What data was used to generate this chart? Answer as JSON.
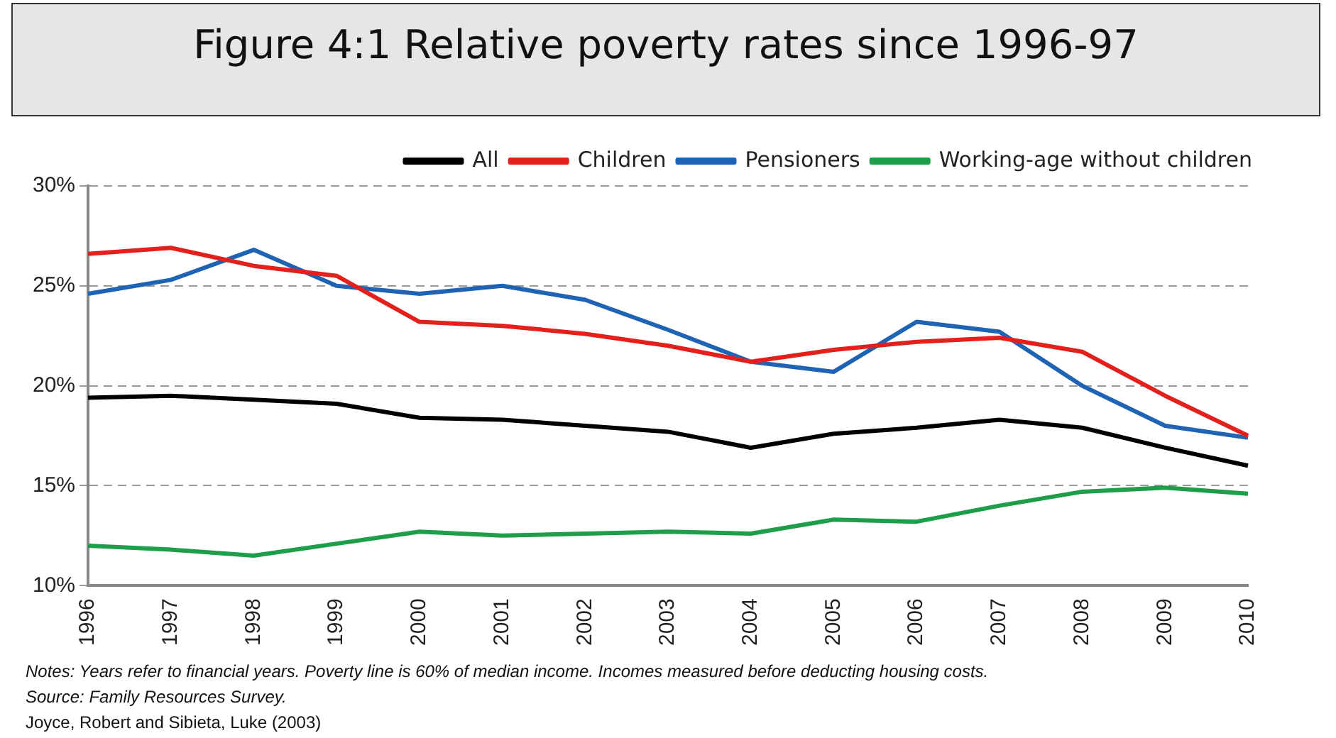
{
  "chart_data": {
    "type": "line",
    "title": "Figure 4:1 Relative poverty rates since 1996-97",
    "categories": [
      "1996",
      "1997",
      "1998",
      "1999",
      "2000",
      "2001",
      "2002",
      "2003",
      "2004",
      "2005",
      "2006",
      "2007",
      "2008",
      "2009",
      "2010"
    ],
    "series": [
      {
        "name": "All",
        "color": "#000000",
        "values": [
          19.4,
          19.5,
          19.3,
          19.1,
          18.4,
          18.3,
          18.0,
          17.7,
          16.9,
          17.6,
          17.9,
          18.3,
          17.9,
          16.9,
          16.0
        ]
      },
      {
        "name": "Children",
        "color": "#e3201b",
        "values": [
          26.6,
          26.9,
          26.0,
          25.5,
          23.2,
          23.0,
          22.6,
          22.0,
          21.2,
          21.8,
          22.2,
          22.4,
          21.7,
          19.5,
          17.5
        ]
      },
      {
        "name": "Pensioners",
        "color": "#1f64b4",
        "values": [
          24.6,
          25.3,
          26.8,
          25.0,
          24.6,
          25.0,
          24.3,
          22.8,
          21.2,
          20.7,
          23.2,
          22.7,
          20.0,
          18.0,
          17.4
        ]
      },
      {
        "name": "Working-age without children",
        "color": "#1e9e48",
        "values": [
          12.0,
          11.8,
          11.5,
          12.1,
          12.7,
          12.5,
          12.6,
          12.7,
          12.6,
          13.3,
          13.2,
          14.0,
          14.7,
          14.9,
          14.6
        ]
      }
    ],
    "ylim": [
      10,
      30
    ],
    "yticks": [
      {
        "value": 10,
        "label": "10%"
      },
      {
        "value": 15,
        "label": "15%"
      },
      {
        "value": 20,
        "label": "20%"
      },
      {
        "value": 25,
        "label": "25%"
      },
      {
        "value": 30,
        "label": "30%"
      }
    ],
    "grid": "y",
    "legend": "top",
    "marker": "none",
    "line_style": "solid",
    "annotations": [
      "Notes: Years refer to financial years. Poverty line is 60% of median income. Incomes measured before deducting housing costs.",
      "Source: Family Resources Survey.",
      "Joyce, Robert and Sibieta, Luke  (2003)"
    ]
  }
}
